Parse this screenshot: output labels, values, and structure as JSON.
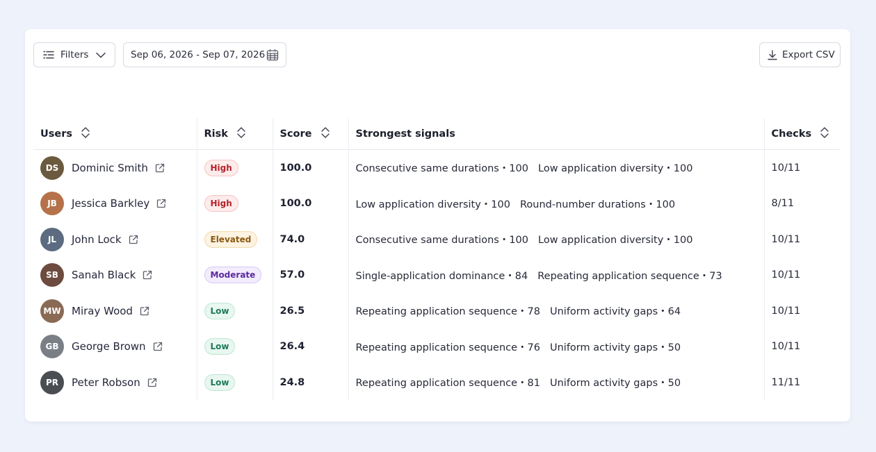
{
  "toolbar": {
    "filters_label": "Filters",
    "date_range": "Sep 06, 2026 - Sep 07, 2026",
    "export_label": "Export CSV"
  },
  "table": {
    "headers": {
      "users": "Users",
      "risk": "Risk",
      "score": "Score",
      "signals": "Strongest signals",
      "checks": "Checks"
    },
    "rows": [
      {
        "name": "Dominic Smith",
        "risk": "High",
        "risk_level": "high",
        "score": "100.0",
        "signal_1": "Consecutive same durations・100",
        "signal_2": "Low application diversity・100",
        "checks": "10/11",
        "avatar_color": "#6b5a3e",
        "initials": "DS"
      },
      {
        "name": "Jessica Barkley",
        "risk": "High",
        "risk_level": "high",
        "score": "100.0",
        "signal_1": "Low application diversity・100",
        "signal_2": "Round-number durations・100",
        "checks": "8/11",
        "avatar_color": "#b5724a",
        "initials": "JB"
      },
      {
        "name": "John Lock",
        "risk": "Elevated",
        "risk_level": "elevated",
        "score": "74.0",
        "signal_1": "Consecutive same durations・100",
        "signal_2": "Low application diversity・100",
        "checks": "10/11",
        "avatar_color": "#5d6b80",
        "initials": "JL"
      },
      {
        "name": "Sanah Black",
        "risk": "Moderate",
        "risk_level": "moderate",
        "score": "57.0",
        "signal_1": "Single-application dominance・84",
        "signal_2": "Repeating application sequence・73",
        "checks": "10/11",
        "avatar_color": "#6e4b3f",
        "initials": "SB"
      },
      {
        "name": "Miray Wood",
        "risk": "Low",
        "risk_level": "low",
        "score": "26.5",
        "signal_1": "Repeating application sequence・78",
        "signal_2": "Uniform activity gaps・64",
        "checks": "10/11",
        "avatar_color": "#8a6a55",
        "initials": "MW"
      },
      {
        "name": "George Brown",
        "risk": "Low",
        "risk_level": "low",
        "score": "26.4",
        "signal_1": "Repeating application sequence・76",
        "signal_2": "Uniform activity gaps・50",
        "checks": "10/11",
        "avatar_color": "#7a7f86",
        "initials": "GB"
      },
      {
        "name": "Peter Robson",
        "risk": "Low",
        "risk_level": "low",
        "score": "24.8",
        "signal_1": "Repeating application sequence・81",
        "signal_2": "Uniform activity gaps・50",
        "checks": "11/11",
        "avatar_color": "#4a4d52",
        "initials": "PR"
      }
    ]
  }
}
